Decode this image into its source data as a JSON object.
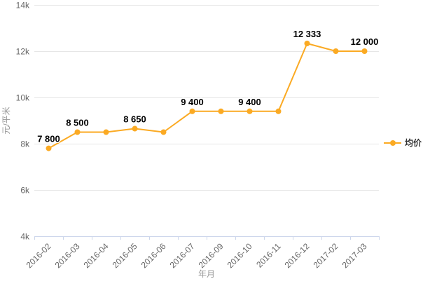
{
  "colors": {
    "series": "#fbaa23",
    "grid": "#e6e6e6",
    "axis_line": "#ccd6eb",
    "tick_label": "#666666",
    "axis_title": "#999999",
    "data_label": "#000000",
    "legend_text": "#333333",
    "background": "#ffffff"
  },
  "chart_data": {
    "type": "line",
    "title": "",
    "xlabel": "年月",
    "ylabel": "元/平米",
    "categories": [
      "2016-02",
      "2016-03",
      "2016-04",
      "2016-05",
      "2016-06",
      "2016-07",
      "2016-09",
      "2016-10",
      "2016-11",
      "2016-12",
      "2017-02",
      "2017-03"
    ],
    "series": [
      {
        "name": "均价",
        "color": "#fbaa23",
        "values": [
          7800,
          8500,
          8500,
          8650,
          8500,
          9400,
          9400,
          9400,
          9400,
          12333,
          12000,
          12000
        ],
        "point_labels": [
          "7 800",
          "8 500",
          null,
          "8 650",
          null,
          "9 400",
          null,
          "9 400",
          null,
          "12 333",
          null,
          "12 000"
        ]
      }
    ],
    "ylim": [
      4000,
      14000
    ],
    "yticks": [
      {
        "value": 4000,
        "label": "4k"
      },
      {
        "value": 6000,
        "label": "6k"
      },
      {
        "value": 8000,
        "label": "8k"
      },
      {
        "value": 10000,
        "label": "10k"
      },
      {
        "value": 12000,
        "label": "12k"
      },
      {
        "value": 14000,
        "label": "14k"
      }
    ],
    "grid": true,
    "legend_position": "right-middle"
  }
}
